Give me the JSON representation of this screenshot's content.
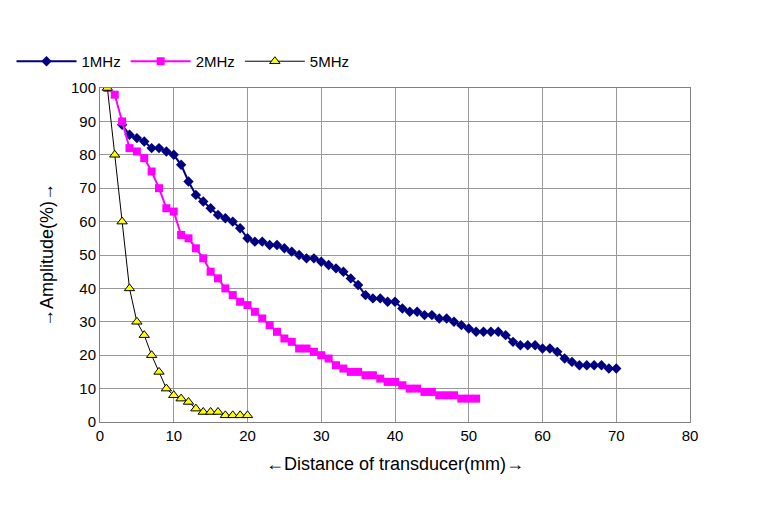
{
  "chart_data": {
    "type": "line",
    "x_label": "←Distance of transducer(mm)→",
    "y_label": "→Amplitude(%)→",
    "xlim": [
      0,
      80
    ],
    "xticks": [
      0,
      10,
      20,
      30,
      40,
      50,
      60,
      70,
      80
    ],
    "ylim": [
      0,
      100
    ],
    "yticks": [
      0,
      10,
      20,
      30,
      40,
      50,
      60,
      70,
      80,
      90,
      100
    ],
    "grid": true,
    "legend": "top",
    "series": [
      {
        "name": "1MHz",
        "color": "#000080",
        "marker": "diamond",
        "x": [
          3,
          4,
          5,
          6,
          7,
          8,
          9,
          10,
          11,
          12,
          13,
          14,
          15,
          16,
          17,
          18,
          19,
          20,
          21,
          22,
          23,
          24,
          25,
          26,
          27,
          28,
          29,
          30,
          31,
          32,
          33,
          34,
          35,
          36,
          37,
          38,
          39,
          40,
          41,
          42,
          43,
          44,
          45,
          46,
          47,
          48,
          49,
          50,
          51,
          52,
          53,
          54,
          55,
          56,
          57,
          58,
          59,
          60,
          61,
          62,
          63,
          64,
          65,
          66,
          67,
          68,
          69,
          70
        ],
        "values": [
          89,
          86,
          85,
          84,
          82,
          82,
          81,
          80,
          77,
          72,
          68,
          66,
          64,
          62,
          61,
          60,
          58,
          55,
          54,
          54,
          53,
          53,
          52,
          51,
          50,
          49,
          49,
          48,
          47,
          46,
          45,
          43,
          41,
          38,
          37,
          37,
          36,
          36,
          34,
          33,
          33,
          32,
          32,
          31,
          31,
          30,
          29,
          28,
          27,
          27,
          27,
          27,
          26,
          24,
          23,
          23,
          23,
          22,
          22,
          21,
          19,
          18,
          17,
          17,
          17,
          17,
          16,
          16
        ]
      },
      {
        "name": "2MHz",
        "color": "#ff00ff",
        "marker": "square",
        "x": [
          1,
          2,
          3,
          4,
          5,
          6,
          7,
          8,
          9,
          10,
          11,
          12,
          13,
          14,
          15,
          16,
          17,
          18,
          19,
          20,
          21,
          22,
          23,
          24,
          25,
          26,
          27,
          28,
          29,
          30,
          31,
          32,
          33,
          34,
          35,
          36,
          37,
          38,
          39,
          40,
          41,
          42,
          43,
          44,
          45,
          46,
          47,
          48,
          49,
          50,
          51
        ],
        "values": [
          100,
          98,
          90,
          82,
          81,
          79,
          75,
          70,
          64,
          63,
          56,
          55,
          52,
          49,
          45,
          43,
          40,
          38,
          36,
          35,
          33,
          31,
          29,
          27,
          25,
          24,
          22,
          22,
          21,
          20,
          19,
          17,
          16,
          15,
          15,
          14,
          14,
          13,
          12,
          12,
          11,
          10,
          10,
          9,
          9,
          8,
          8,
          8,
          7,
          7,
          7
        ]
      },
      {
        "name": "5MHz",
        "color": "#ffff00",
        "marker": "triangle-up",
        "x": [
          1,
          2,
          3,
          4,
          5,
          6,
          7,
          8,
          9,
          10,
          11,
          12,
          13,
          14,
          15,
          16,
          17,
          18,
          19,
          20
        ],
        "values": [
          100,
          80,
          60,
          40,
          30,
          26,
          20,
          15,
          10,
          8,
          7,
          6,
          4,
          3,
          3,
          3,
          2,
          2,
          2,
          2
        ]
      }
    ]
  }
}
